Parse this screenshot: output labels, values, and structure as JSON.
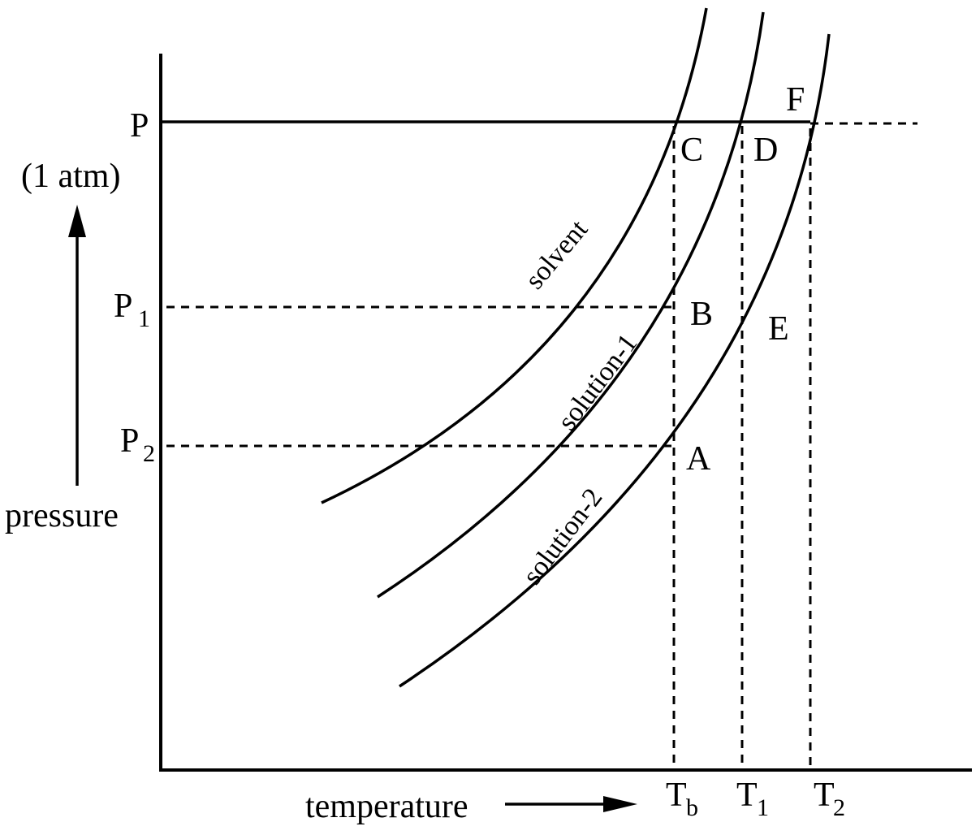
{
  "axes": {
    "y_label": "pressure",
    "x_label": "temperature"
  },
  "pressure_ticks": {
    "P": "P",
    "P_unit": "(1 atm)",
    "P1_main": "P",
    "P1_sub": "1",
    "P2_main": "P",
    "P2_sub": "2"
  },
  "temperature_ticks": {
    "Tb_main": "T",
    "Tb_sub": "b",
    "T1_main": "T",
    "T1_sub": "1",
    "T2_main": "T",
    "T2_sub": "2"
  },
  "curves": {
    "solvent": "solvent",
    "solution1": "solution-1",
    "solution2": "solution-2"
  },
  "points": {
    "A": "A",
    "B": "B",
    "C": "C",
    "D": "D",
    "E": "E",
    "F": "F"
  }
}
